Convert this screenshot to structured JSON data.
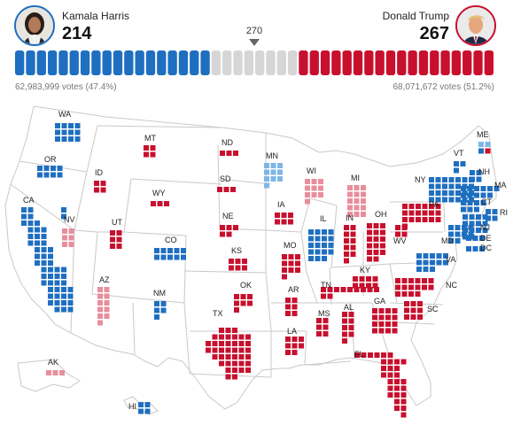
{
  "header": {
    "harris": {
      "name": "Kamala Harris",
      "electoral_votes": "214",
      "popular_votes": "62,983,999 votes (47.4%)",
      "color": "#1f6fc0"
    },
    "trump": {
      "name": "Donald Trump",
      "electoral_votes": "267",
      "popular_votes": "68,071,672 votes (51.2%)",
      "color": "#c8102e"
    },
    "threshold": "270",
    "seat_bar": {
      "total_segments": 44,
      "dem_segments": 18,
      "undecided_segments": 8,
      "rep_segments": 18,
      "undecided_color": "#d6d6d6"
    }
  },
  "legend_colors": {
    "dem": "#1f6fc0",
    "lean_dem": "#7eb6e6",
    "rep": "#c8102e",
    "lean_rep": "#e88e9c"
  },
  "states": [
    {
      "code": "WA",
      "ev": 12,
      "party": "dem"
    },
    {
      "code": "OR",
      "ev": 8,
      "party": "dem"
    },
    {
      "code": "CA",
      "ev": 54,
      "party": "dem"
    },
    {
      "code": "NV",
      "ev": 6,
      "party": "lean_rep"
    },
    {
      "code": "ID",
      "ev": 4,
      "party": "rep"
    },
    {
      "code": "MT",
      "ev": 4,
      "party": "rep"
    },
    {
      "code": "WY",
      "ev": 3,
      "party": "rep"
    },
    {
      "code": "UT",
      "ev": 6,
      "party": "rep"
    },
    {
      "code": "CO",
      "ev": 10,
      "party": "dem"
    },
    {
      "code": "AZ",
      "ev": 11,
      "party": "lean_rep"
    },
    {
      "code": "NM",
      "ev": 5,
      "party": "dem"
    },
    {
      "code": "ND",
      "ev": 3,
      "party": "rep"
    },
    {
      "code": "SD",
      "ev": 3,
      "party": "rep"
    },
    {
      "code": "NE",
      "ev": 5,
      "party": "rep"
    },
    {
      "code": "KS",
      "ev": 6,
      "party": "rep"
    },
    {
      "code": "OK",
      "ev": 7,
      "party": "rep"
    },
    {
      "code": "TX",
      "ev": 40,
      "party": "rep"
    },
    {
      "code": "MN",
      "ev": 10,
      "party": "lean_dem"
    },
    {
      "code": "IA",
      "ev": 6,
      "party": "rep"
    },
    {
      "code": "MO",
      "ev": 10,
      "party": "rep"
    },
    {
      "code": "AR",
      "ev": 6,
      "party": "rep"
    },
    {
      "code": "LA",
      "ev": 8,
      "party": "rep"
    },
    {
      "code": "WI",
      "ev": 10,
      "party": "lean_rep"
    },
    {
      "code": "IL",
      "ev": 19,
      "party": "dem"
    },
    {
      "code": "MI",
      "ev": 15,
      "party": "lean_rep"
    },
    {
      "code": "IN",
      "ev": 11,
      "party": "rep"
    },
    {
      "code": "OH",
      "ev": 17,
      "party": "rep"
    },
    {
      "code": "KY",
      "ev": 8,
      "party": "rep"
    },
    {
      "code": "TN",
      "ev": 11,
      "party": "rep"
    },
    {
      "code": "MS",
      "ev": 6,
      "party": "rep"
    },
    {
      "code": "AL",
      "ev": 9,
      "party": "rep"
    },
    {
      "code": "GA",
      "ev": 16,
      "party": "rep"
    },
    {
      "code": "FL",
      "ev": 30,
      "party": "rep"
    },
    {
      "code": "SC",
      "ev": 9,
      "party": "rep"
    },
    {
      "code": "NC",
      "ev": 16,
      "party": "rep"
    },
    {
      "code": "VA",
      "ev": 13,
      "party": "dem"
    },
    {
      "code": "WV",
      "ev": 4,
      "party": "rep"
    },
    {
      "code": "PA",
      "ev": 19,
      "party": "rep"
    },
    {
      "code": "NY",
      "ev": 28,
      "party": "dem"
    },
    {
      "code": "VT",
      "ev": 3,
      "party": "dem"
    },
    {
      "code": "NH",
      "ev": 4,
      "party": "dem"
    },
    {
      "code": "ME",
      "ev": 4,
      "party": "split"
    },
    {
      "code": "MA",
      "ev": 11,
      "party": "dem"
    },
    {
      "code": "RI",
      "ev": 4,
      "party": "dem"
    },
    {
      "code": "CT",
      "ev": 7,
      "party": "dem"
    },
    {
      "code": "NJ",
      "ev": 14,
      "party": "dem"
    },
    {
      "code": "DE",
      "ev": 3,
      "party": "dem"
    },
    {
      "code": "MD",
      "ev": 10,
      "party": "dem"
    },
    {
      "code": "DC",
      "ev": 3,
      "party": "dem"
    },
    {
      "code": "AK",
      "ev": 3,
      "party": "lean_rep"
    },
    {
      "code": "HI",
      "ev": 4,
      "party": "dem"
    }
  ]
}
